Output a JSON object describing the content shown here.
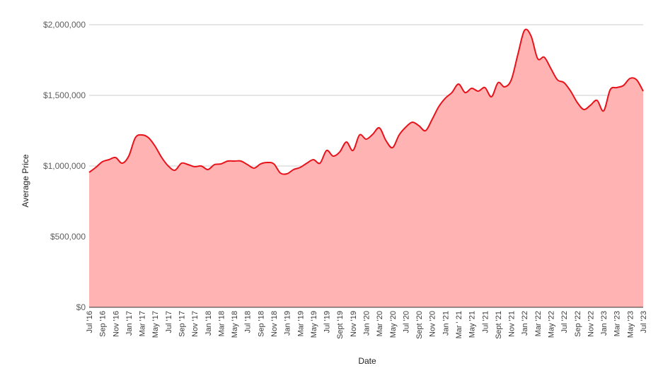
{
  "chart_data": {
    "type": "area",
    "title": "",
    "xlabel": "Date",
    "ylabel": "Average Price",
    "ylim": [
      0,
      2000000
    ],
    "y_ticks": [
      0,
      500000,
      1000000,
      1500000,
      2000000
    ],
    "y_tick_labels": [
      "$0",
      "$500,000",
      "$1,000,000",
      "$1,500,000",
      "$2,000,000"
    ],
    "grid": true,
    "legend": "none",
    "colors": {
      "line": "#e8121a",
      "fill": "#ffb3b3",
      "grid": "#cccccc",
      "baseline": "#333333"
    },
    "x_tick_labels": [
      "Jul '16",
      "Sep '16",
      "Nov '16",
      "Jan '17",
      "Mar '17",
      "May '17",
      "Jul '17",
      "Sep '17",
      "Nov '17",
      "Jan '18",
      "Mar '18",
      "May '18",
      "Jul '18",
      "Sep '18",
      "Nov '18",
      "Jan '19",
      "Mar '19",
      "May '19",
      "Jul '19",
      "Sept '19",
      "Nov '19",
      "Jan '20",
      "Mar '20",
      "May '20",
      "Jul '20",
      "Sept '20",
      "Nov '20",
      "Jan '21",
      "Mar ' 21",
      "May '21",
      "Jul '21",
      "Sept '21",
      "Nov '21",
      "Jan '22",
      "Mar '22",
      "May '22",
      "Jul '22",
      "Sep '22",
      "Nov '22",
      "Jan '23",
      "Mar '23",
      "May '23",
      "Jul '23"
    ],
    "series": [
      {
        "x": [
          "Jul '16",
          "Aug '16",
          "Sep '16",
          "Oct '16",
          "Nov '16",
          "Dec '16",
          "Jan '17",
          "Feb '17",
          "Mar '17",
          "Apr '17",
          "May '17",
          "Jun '17",
          "Jul '17",
          "Aug '17",
          "Sep '17",
          "Oct '17",
          "Nov '17",
          "Dec '17",
          "Jan '18",
          "Feb '18",
          "Mar '18",
          "Apr '18",
          "May '18",
          "Jun '18",
          "Jul '18",
          "Aug '18",
          "Sep '18",
          "Oct '18",
          "Nov '18",
          "Dec '18",
          "Jan '19",
          "Feb '19",
          "Mar '19",
          "Apr '19",
          "May '19",
          "Jun '19",
          "Jul '19",
          "Aug '19",
          "Sept '19",
          "Oct '19",
          "Nov '19",
          "Dec '19",
          "Jan '20",
          "Feb '20",
          "Mar '20",
          "Apr '20",
          "May '20",
          "Jun '20",
          "Jul '20",
          "Aug '20",
          "Sept '20",
          "Oct '20",
          "Nov '20",
          "Dec '20",
          "Jan '21",
          "Feb '21",
          "Mar ' 21",
          "Apr '21",
          "May '21",
          "Jun '21",
          "Jul '21",
          "Aug '21",
          "Sept '21",
          "Oct '21",
          "Nov '21",
          "Dec '21",
          "Jan '22",
          "Feb '22",
          "Mar '22",
          "Apr '22",
          "May '22",
          "Jun '22",
          "Jul '22",
          "Aug '22",
          "Sep '22",
          "Oct '22",
          "Nov '22",
          "Dec '22",
          "Jan '23",
          "Feb '23",
          "Mar '23",
          "Apr '23",
          "May '23",
          "Jun '23",
          "Jul '23"
        ],
        "values": [
          955000,
          990000,
          1030000,
          1045000,
          1060000,
          1020000,
          1070000,
          1200000,
          1220000,
          1200000,
          1140000,
          1060000,
          1000000,
          970000,
          1020000,
          1010000,
          995000,
          1000000,
          975000,
          1010000,
          1015000,
          1035000,
          1035000,
          1035000,
          1010000,
          985000,
          1015000,
          1025000,
          1015000,
          950000,
          945000,
          975000,
          990000,
          1020000,
          1045000,
          1020000,
          1110000,
          1070000,
          1100000,
          1170000,
          1110000,
          1220000,
          1190000,
          1225000,
          1270000,
          1180000,
          1130000,
          1220000,
          1275000,
          1310000,
          1285000,
          1250000,
          1330000,
          1420000,
          1480000,
          1520000,
          1580000,
          1520000,
          1550000,
          1530000,
          1555000,
          1490000,
          1590000,
          1560000,
          1610000,
          1790000,
          1960000,
          1920000,
          1760000,
          1770000,
          1690000,
          1610000,
          1590000,
          1530000,
          1450000,
          1400000,
          1430000,
          1465000,
          1390000,
          1540000,
          1555000,
          1570000,
          1620000,
          1610000,
          1530000
        ]
      }
    ]
  }
}
